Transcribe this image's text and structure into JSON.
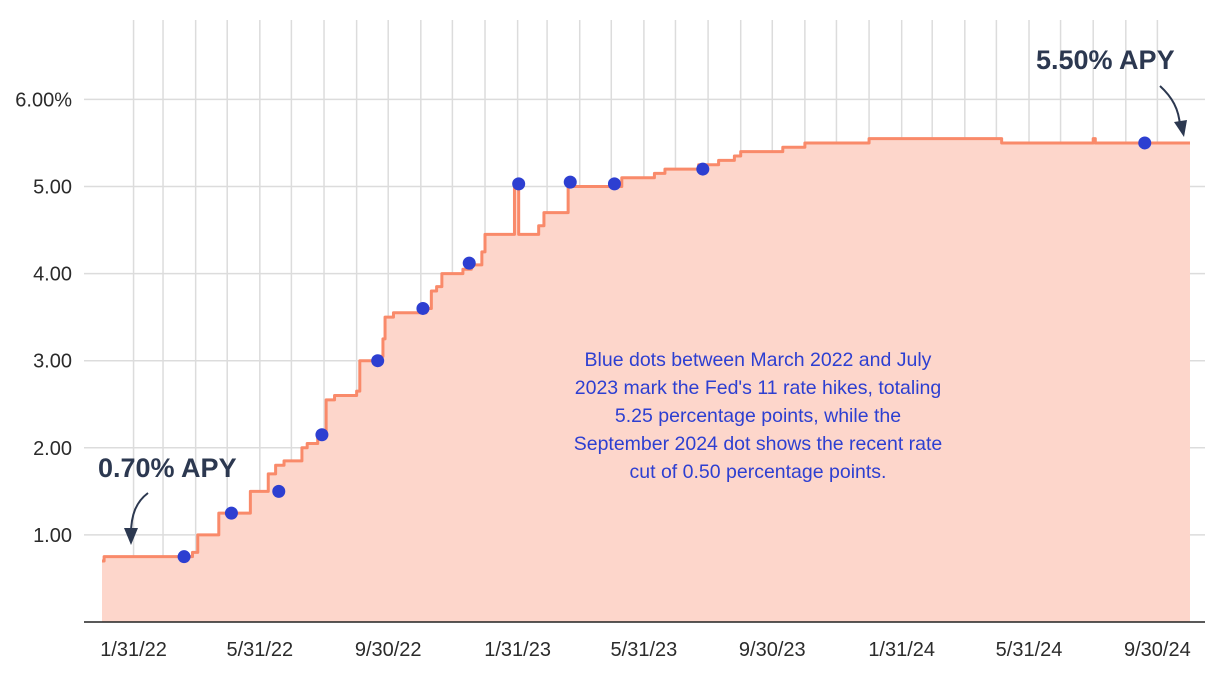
{
  "chart_data": {
    "type": "area",
    "colors": {
      "line": "#f98a6a",
      "fill": "#fdd6cb",
      "dots": "#2d3fd1",
      "grid": "#dcdcdc",
      "axis": "#222222",
      "callout": "#2c3850",
      "note": "#2d3fd1"
    },
    "grid": true,
    "ylim": [
      0,
      6
    ],
    "y_ticks": [
      {
        "value": 1,
        "label": "1.00"
      },
      {
        "value": 2,
        "label": "2.00"
      },
      {
        "value": 3,
        "label": "3.00"
      },
      {
        "value": 4,
        "label": "4.00"
      },
      {
        "value": 5,
        "label": "5.00"
      },
      {
        "value": 6,
        "label": "6.00%"
      }
    ],
    "xlim": [
      "2022-01-01",
      "2024-10-31"
    ],
    "x_ticks": [
      {
        "date": "2022-01-31",
        "label": "1/31/22"
      },
      {
        "date": "2022-05-31",
        "label": "5/31/22"
      },
      {
        "date": "2022-09-30",
        "label": "9/30/22"
      },
      {
        "date": "2023-01-31",
        "label": "1/31/23"
      },
      {
        "date": "2023-05-31",
        "label": "5/31/23"
      },
      {
        "date": "2023-09-30",
        "label": "9/30/23"
      },
      {
        "date": "2024-01-31",
        "label": "1/31/24"
      },
      {
        "date": "2024-05-31",
        "label": "5/31/24"
      },
      {
        "date": "2024-09-30",
        "label": "9/30/24"
      }
    ],
    "x_minor_grid": [
      "2022-02-28",
      "2022-03-31",
      "2022-04-30",
      "2022-06-30",
      "2022-07-31",
      "2022-08-31",
      "2022-10-31",
      "2022-11-30",
      "2022-12-31",
      "2023-02-28",
      "2023-03-31",
      "2023-04-30",
      "2023-06-30",
      "2023-07-31",
      "2023-08-31",
      "2023-10-31",
      "2023-11-30",
      "2023-12-31",
      "2024-02-29",
      "2024-03-31",
      "2024-04-30",
      "2024-06-30",
      "2024-07-31",
      "2024-08-31"
    ],
    "series": [
      {
        "step": [
          [
            "2022-01-01",
            0.7
          ],
          [
            "2022-01-03",
            0.75
          ],
          [
            "2022-03-28",
            0.8
          ],
          [
            "2022-04-02",
            1.0
          ],
          [
            "2022-04-22",
            1.25
          ],
          [
            "2022-05-22",
            1.5
          ],
          [
            "2022-06-08",
            1.7
          ],
          [
            "2022-06-15",
            1.8
          ],
          [
            "2022-06-23",
            1.85
          ],
          [
            "2022-07-10",
            2.0
          ],
          [
            "2022-07-15",
            2.05
          ],
          [
            "2022-07-25",
            2.15
          ],
          [
            "2022-08-02",
            2.55
          ],
          [
            "2022-08-10",
            2.6
          ],
          [
            "2022-08-31",
            2.65
          ],
          [
            "2022-09-03",
            3.0
          ],
          [
            "2022-09-22",
            3.05
          ],
          [
            "2022-09-25",
            3.25
          ],
          [
            "2022-09-27",
            3.5
          ],
          [
            "2022-10-05",
            3.55
          ],
          [
            "2022-11-05",
            3.6
          ],
          [
            "2022-11-10",
            3.8
          ],
          [
            "2022-11-15",
            3.85
          ],
          [
            "2022-11-20",
            4.0
          ],
          [
            "2022-12-10",
            4.05
          ],
          [
            "2022-12-18",
            4.1
          ],
          [
            "2022-12-28",
            4.25
          ],
          [
            "2022-12-31",
            4.45
          ],
          [
            "2023-01-28",
            5.05
          ],
          [
            "2023-02-01",
            4.45
          ],
          [
            "2023-02-20",
            4.55
          ],
          [
            "2023-02-25",
            4.7
          ],
          [
            "2023-03-20",
            5.0
          ],
          [
            "2023-05-10",
            5.1
          ],
          [
            "2023-06-10",
            5.15
          ],
          [
            "2023-06-20",
            5.2
          ],
          [
            "2023-07-22",
            5.25
          ],
          [
            "2023-08-10",
            5.3
          ],
          [
            "2023-08-25",
            5.35
          ],
          [
            "2023-08-31",
            5.4
          ],
          [
            "2023-10-10",
            5.45
          ],
          [
            "2023-10-31",
            5.5
          ],
          [
            "2023-12-31",
            5.55
          ],
          [
            "2024-05-05",
            5.5
          ],
          [
            "2024-07-31",
            5.55
          ],
          [
            "2024-08-02",
            5.5
          ],
          [
            "2024-10-31",
            5.5
          ]
        ]
      }
    ],
    "dots": [
      {
        "date": "2022-03-20",
        "value": 0.75
      },
      {
        "date": "2022-05-04",
        "value": 1.25
      },
      {
        "date": "2022-06-18",
        "value": 1.5
      },
      {
        "date": "2022-07-29",
        "value": 2.15
      },
      {
        "date": "2022-09-20",
        "value": 3.0
      },
      {
        "date": "2022-11-02",
        "value": 3.6
      },
      {
        "date": "2022-12-16",
        "value": 4.12
      },
      {
        "date": "2023-02-01",
        "value": 5.03
      },
      {
        "date": "2023-03-22",
        "value": 5.05
      },
      {
        "date": "2023-05-03",
        "value": 5.03
      },
      {
        "date": "2023-07-26",
        "value": 5.2
      },
      {
        "date": "2024-09-18",
        "value": 5.5
      }
    ],
    "annotations": {
      "start_label": "0.70% APY",
      "end_label": "5.50% APY",
      "note_lines": [
        "Blue dots between March 2022 and July",
        "2023 mark the Fed's 11 rate hikes, totaling",
        "5.25 percentage points, while the",
        "September 2024 dot shows the recent rate",
        "cut of 0.50 percentage points."
      ]
    }
  }
}
